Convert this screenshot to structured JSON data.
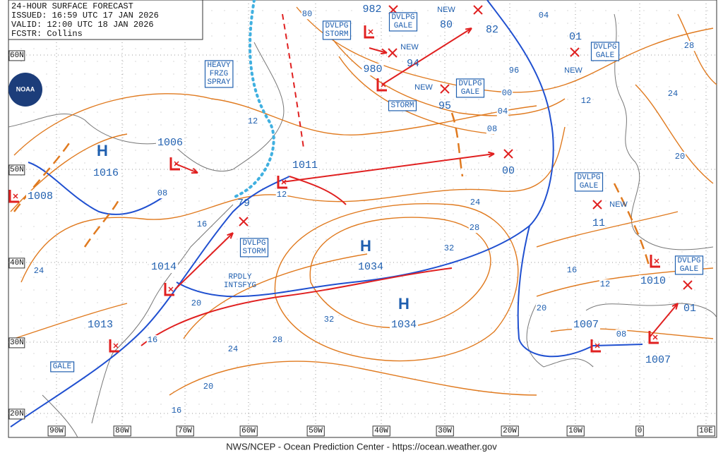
{
  "header": {
    "lines": [
      "24-HOUR SURFACE FORECAST",
      "ISSUED: 16:59 UTC 17 JAN 2026",
      "VALID: 12:00 UTC 18 JAN 2026",
      "FCSTR: Collins"
    ]
  },
  "logo": "NOAA",
  "footer": "NWS/NCEP - Ocean Prediction Center - https://ocean.weather.gov",
  "lat_labels": [
    "60N",
    "50N",
    "40N",
    "30N",
    "20N"
  ],
  "lon_labels": [
    "90W",
    "80W",
    "70W",
    "60W",
    "50W",
    "40W",
    "30W",
    "20W",
    "10W",
    "0",
    "10E"
  ],
  "highs": [
    {
      "letter": "H",
      "pressure": "1016"
    },
    {
      "letter": "H",
      "pressure": "1034"
    },
    {
      "letter": "H",
      "pressure": "1034"
    }
  ],
  "lows": [
    {
      "pressure": "1006"
    },
    {
      "pressure": "1008"
    },
    {
      "pressure": "1011"
    },
    {
      "pressure": "980"
    },
    {
      "pressure": "982"
    },
    {
      "pressure": "1014"
    },
    {
      "pressure": "1013"
    },
    {
      "pressure": "1007"
    },
    {
      "pressure": "1007"
    },
    {
      "pressure": "1010"
    }
  ],
  "forecast_pressures": [
    "79",
    "94",
    "80",
    "82",
    "95",
    "00",
    "01",
    "11",
    "01"
  ],
  "warnings": [
    {
      "lines": [
        "DVLPG",
        "STORM"
      ]
    },
    {
      "lines": [
        "DVLPG",
        "GALE"
      ]
    },
    {
      "lines": [
        "HEAVY",
        "FRZG",
        "SPRAY"
      ]
    },
    {
      "lines": [
        "DVLPG",
        "GALE"
      ]
    },
    {
      "lines": [
        "STORM"
      ]
    },
    {
      "lines": [
        "DVLPG",
        "GALE"
      ]
    },
    {
      "lines": [
        "DVLPG",
        "GALE"
      ]
    },
    {
      "lines": [
        "DVLPG",
        "STORM"
      ]
    },
    {
      "lines": [
        "DVLPG",
        "GALE"
      ]
    },
    {
      "lines": [
        "GALE"
      ]
    }
  ],
  "notes": [
    {
      "lines": [
        "RPDLY",
        "INTSFYG"
      ]
    }
  ],
  "new_labels": [
    "NEW",
    "NEW",
    "NEW",
    "NEW",
    "NEW"
  ],
  "isobar_labels": [
    "80",
    "04",
    "28",
    "96",
    "00",
    "12",
    "24",
    "04",
    "08",
    "20",
    "12",
    "08",
    "16",
    "12",
    "24",
    "28",
    "32",
    "24",
    "16",
    "12",
    "20",
    "20",
    "32",
    "16",
    "28",
    "24",
    "08",
    "20",
    "16"
  ]
}
